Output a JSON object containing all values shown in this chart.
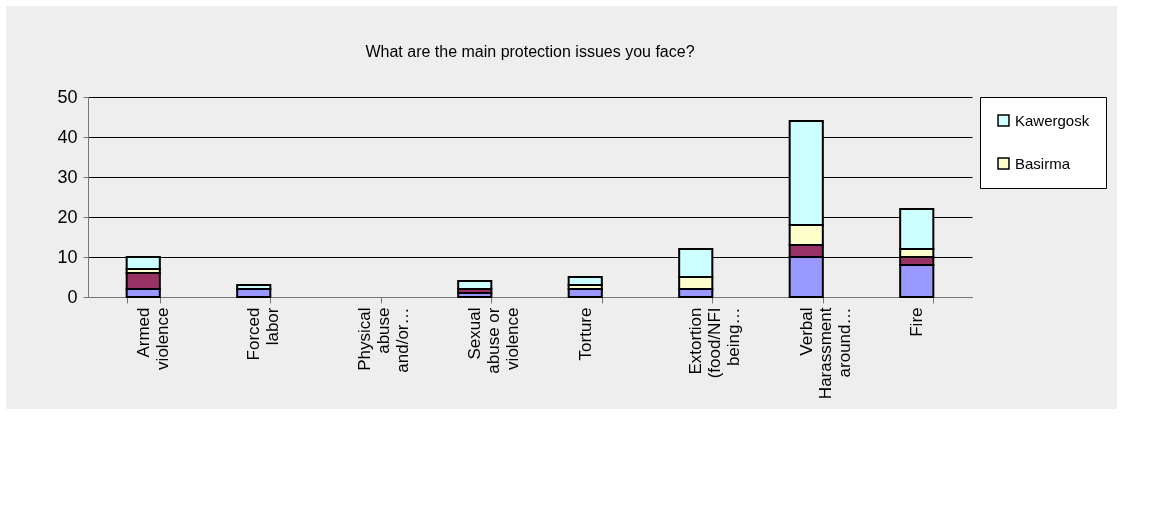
{
  "chart_data": {
    "type": "bar",
    "title": "What are the main protection issues you face?",
    "stacked": true,
    "categories": [
      "Armed violence",
      "Forced labor",
      "Physical abuse and/or…",
      "Sexual abuse or violence",
      "Torture",
      "Extortion (food/NFI being…",
      "Verbal Harassment around…",
      "Fire"
    ],
    "series": [
      {
        "color": "#9999ff",
        "values": [
          2,
          2,
          0,
          1,
          2,
          2,
          10,
          8
        ]
      },
      {
        "color": "#993366",
        "values": [
          4,
          0,
          0,
          1,
          0,
          0,
          3,
          2
        ]
      },
      {
        "name": "Basirma",
        "color": "#ffffcc",
        "values": [
          1,
          0,
          0,
          0,
          1,
          3,
          5,
          2
        ]
      },
      {
        "name": "Kawergosk",
        "color": "#ccffff",
        "values": [
          3,
          1,
          0,
          2,
          2,
          7,
          26,
          10
        ]
      }
    ],
    "ylim": [
      0,
      50
    ],
    "yticks": [
      0,
      10,
      20,
      30,
      40,
      50
    ],
    "grid": "y",
    "legend": "right"
  }
}
